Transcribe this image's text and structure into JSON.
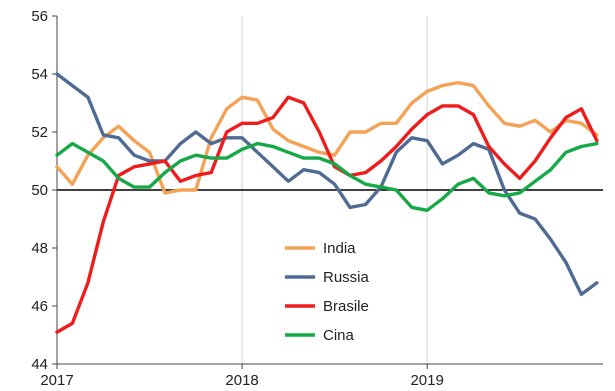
{
  "chart_data": {
    "type": "line",
    "title": "",
    "xlabel": "",
    "ylabel": "",
    "ylim": [
      44,
      56
    ],
    "yticks": [
      44,
      46,
      48,
      50,
      52,
      54,
      56
    ],
    "xticks": [
      {
        "label": "2017",
        "x": 2017.0
      },
      {
        "label": "2018",
        "x": 2018.0
      },
      {
        "label": "2019",
        "x": 2019.0
      }
    ],
    "x_range": [
      2017.0,
      2019.95
    ],
    "x_label_note": "monthly observations, Jan 2017 – Dec 2019",
    "grid": "vertical gridlines at year starts, horizontal reference line at 50",
    "legend_placement": "center",
    "x": [
      2017.0,
      2017.083,
      2017.167,
      2017.25,
      2017.333,
      2017.417,
      2017.5,
      2017.583,
      2017.667,
      2017.75,
      2017.833,
      2017.917,
      2018.0,
      2018.083,
      2018.167,
      2018.25,
      2018.333,
      2018.417,
      2018.5,
      2018.583,
      2018.667,
      2018.75,
      2018.833,
      2018.917,
      2019.0,
      2019.083,
      2019.167,
      2019.25,
      2019.333,
      2019.417,
      2019.5,
      2019.583,
      2019.667,
      2019.75,
      2019.833,
      2019.917
    ],
    "series": [
      {
        "name": "India",
        "color": "#f4a256",
        "values": [
          50.8,
          50.2,
          51.2,
          51.8,
          52.2,
          51.7,
          51.3,
          49.9,
          50.0,
          50.0,
          51.8,
          52.8,
          53.2,
          53.1,
          52.1,
          51.7,
          51.5,
          51.3,
          51.2,
          52.0,
          52.0,
          52.3,
          52.3,
          53.0,
          53.4,
          53.6,
          53.7,
          53.6,
          52.9,
          52.3,
          52.2,
          52.4,
          52.0,
          52.4,
          52.3,
          51.9
        ]
      },
      {
        "name": "Russia",
        "color": "#4f6b94",
        "values": [
          54.0,
          53.6,
          53.2,
          51.9,
          51.8,
          51.2,
          51.0,
          51.0,
          51.6,
          52.0,
          51.6,
          51.8,
          51.8,
          51.3,
          50.8,
          50.3,
          50.7,
          50.6,
          50.2,
          49.4,
          49.5,
          50.1,
          51.3,
          51.8,
          51.7,
          50.9,
          51.2,
          51.6,
          51.4,
          50.0,
          49.2,
          49.0,
          48.3,
          47.5,
          46.4,
          46.8
        ]
      },
      {
        "name": "Brasile",
        "color": "#ee1c1c",
        "values": [
          45.1,
          45.4,
          46.8,
          48.9,
          50.5,
          50.8,
          50.9,
          51.0,
          50.3,
          50.5,
          50.6,
          52.0,
          52.3,
          52.3,
          52.5,
          53.2,
          53.0,
          52.0,
          50.8,
          50.5,
          50.6,
          51.0,
          51.5,
          52.1,
          52.6,
          52.9,
          52.9,
          52.6,
          51.5,
          50.9,
          50.4,
          51.0,
          51.8,
          52.5,
          52.8,
          51.7
        ]
      },
      {
        "name": "Cina",
        "color": "#17a848",
        "values": [
          51.2,
          51.6,
          51.3,
          51.0,
          50.4,
          50.1,
          50.1,
          50.6,
          51.0,
          51.2,
          51.1,
          51.1,
          51.4,
          51.6,
          51.5,
          51.3,
          51.1,
          51.1,
          50.9,
          50.5,
          50.2,
          50.1,
          50.0,
          49.4,
          49.3,
          49.7,
          50.2,
          50.4,
          49.9,
          49.8,
          49.9,
          50.3,
          50.7,
          51.3,
          51.5,
          51.6
        ]
      }
    ]
  }
}
